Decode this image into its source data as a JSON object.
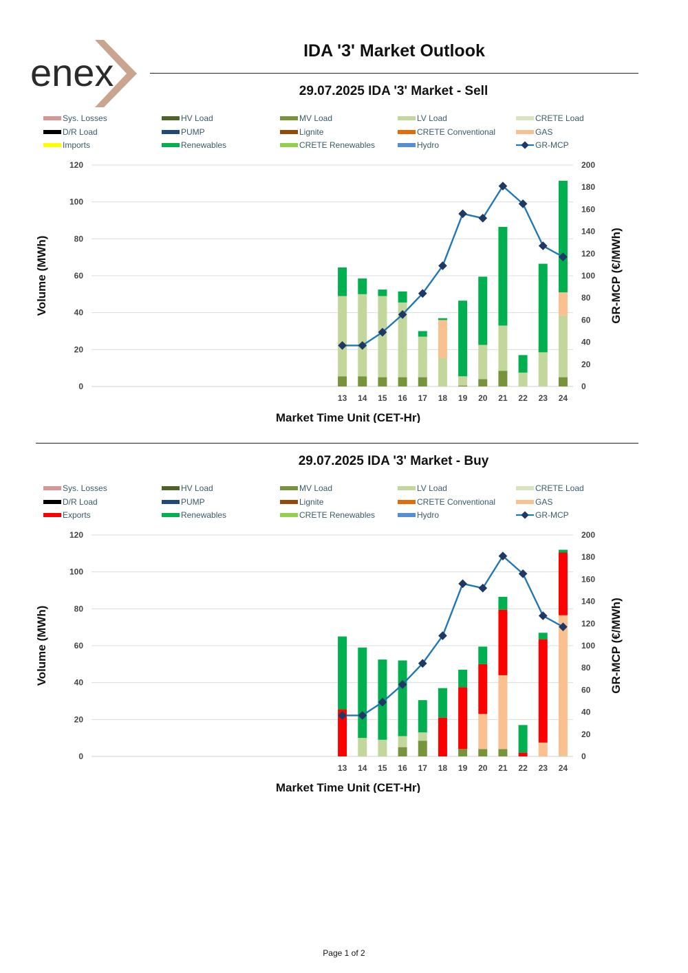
{
  "brand": {
    "logo_text": "enex"
  },
  "header": {
    "title": "IDA '3' Market Outlook"
  },
  "footer": {
    "page_label": "Page 1 of 2"
  },
  "colors": {
    "sys_losses": "#d99594",
    "hv_load": "#4f6228",
    "mv_load": "#77933c",
    "lv_load": "#c3d69b",
    "crete_load": "#d7e4bd",
    "dr_load": "#000000",
    "pump": "#1f497d",
    "lignite": "#974806",
    "crete_conventional": "#e36c09",
    "gas": "#fac090",
    "imports": "#ffff00",
    "exports": "#ff0000",
    "renewables": "#00b050",
    "crete_renewables": "#92d050",
    "hydro": "#558ed5",
    "mcp_line": "#1f77b4",
    "mcp_marker": "#1f3864"
  },
  "chart_data": [
    {
      "type": "bar",
      "title": "29.07.2025  IDA '3' Market - Sell",
      "xlabel": "Market Time Unit (CET-Hr)",
      "ylabel": "Volume (MWh)",
      "y2label": "GR-MCP (€/MWh)",
      "ylim": [
        0,
        120
      ],
      "y2lim": [
        0,
        200
      ],
      "yticks": [
        "0",
        "20",
        "40",
        "60",
        "80",
        "100",
        "120"
      ],
      "y2ticks": [
        "0",
        "20",
        "40",
        "60",
        "80",
        "100",
        "120",
        "140",
        "160",
        "180",
        "200"
      ],
      "slots": 24,
      "categories": [
        "13",
        "14",
        "15",
        "16",
        "17",
        "18",
        "19",
        "20",
        "21",
        "22",
        "23",
        "24"
      ],
      "legend": [
        {
          "key": "sys_losses",
          "label": "Sys. Losses",
          "kind": "bar"
        },
        {
          "key": "hv_load",
          "label": "HV Load",
          "kind": "bar"
        },
        {
          "key": "mv_load",
          "label": "MV Load",
          "kind": "bar"
        },
        {
          "key": "lv_load",
          "label": "LV Load",
          "kind": "bar"
        },
        {
          "key": "crete_load",
          "label": "CRETE Load",
          "kind": "bar"
        },
        {
          "key": "dr_load",
          "label": "D/R Load",
          "kind": "bar"
        },
        {
          "key": "pump",
          "label": "PUMP",
          "kind": "bar"
        },
        {
          "key": "lignite",
          "label": "Lignite",
          "kind": "bar"
        },
        {
          "key": "crete_conventional",
          "label": "CRETE Conventional",
          "kind": "bar"
        },
        {
          "key": "gas",
          "label": "GAS",
          "kind": "bar"
        },
        {
          "key": "imports",
          "label": "Imports",
          "kind": "bar"
        },
        {
          "key": "renewables",
          "label": "Renewables",
          "kind": "bar"
        },
        {
          "key": "crete_renewables",
          "label": "CRETE Renewables",
          "kind": "bar"
        },
        {
          "key": "hydro",
          "label": "Hydro",
          "kind": "bar"
        },
        {
          "key": "gr_mcp",
          "label": "GR-MCP",
          "kind": "line"
        }
      ],
      "series": [
        {
          "name": "MV Load",
          "key": "mv_load",
          "values": [
            5.5,
            5.5,
            5,
            5,
            5,
            0,
            0.5,
            4,
            8.5,
            0,
            0,
            5
          ]
        },
        {
          "name": "LV Load",
          "key": "lv_load",
          "values": [
            43.5,
            44.5,
            44,
            40.5,
            22,
            15.5,
            5,
            18.5,
            24.5,
            7.5,
            18.5,
            33.5
          ]
        },
        {
          "name": "GAS",
          "key": "gas",
          "values": [
            0,
            0,
            0,
            0,
            0,
            20.5,
            0,
            0,
            0,
            0,
            0,
            12.5
          ]
        },
        {
          "name": "Renewables",
          "key": "renewables",
          "values": [
            15.5,
            8.5,
            3.5,
            6,
            3,
            1,
            41,
            37,
            53.5,
            9.5,
            48,
            60.5
          ]
        }
      ],
      "line": {
        "name": "GR-MCP",
        "axis": "right",
        "values": [
          37,
          37,
          49,
          65,
          84,
          109,
          156,
          152,
          181,
          165,
          127,
          117
        ]
      }
    },
    {
      "type": "bar",
      "title": "29.07.2025  IDA '3' Market - Buy",
      "xlabel": "Market Time Unit (CET-Hr)",
      "ylabel": "Volume (MWh)",
      "y2label": "GR-MCP (€/MWh)",
      "ylim": [
        0,
        120
      ],
      "y2lim": [
        0,
        200
      ],
      "yticks": [
        "0",
        "20",
        "40",
        "60",
        "80",
        "100",
        "120"
      ],
      "y2ticks": [
        "0",
        "20",
        "40",
        "60",
        "80",
        "100",
        "120",
        "140",
        "160",
        "180",
        "200"
      ],
      "slots": 24,
      "categories": [
        "13",
        "14",
        "15",
        "16",
        "17",
        "18",
        "19",
        "20",
        "21",
        "22",
        "23",
        "24"
      ],
      "legend": [
        {
          "key": "sys_losses",
          "label": "Sys. Losses",
          "kind": "bar"
        },
        {
          "key": "hv_load",
          "label": "HV Load",
          "kind": "bar"
        },
        {
          "key": "mv_load",
          "label": "MV Load",
          "kind": "bar"
        },
        {
          "key": "lv_load",
          "label": "LV Load",
          "kind": "bar"
        },
        {
          "key": "crete_load",
          "label": "CRETE Load",
          "kind": "bar"
        },
        {
          "key": "dr_load",
          "label": "D/R Load",
          "kind": "bar"
        },
        {
          "key": "pump",
          "label": "PUMP",
          "kind": "bar"
        },
        {
          "key": "lignite",
          "label": "Lignite",
          "kind": "bar"
        },
        {
          "key": "crete_conventional",
          "label": "CRETE Conventional",
          "kind": "bar"
        },
        {
          "key": "gas",
          "label": "GAS",
          "kind": "bar"
        },
        {
          "key": "exports",
          "label": "Exports",
          "kind": "bar"
        },
        {
          "key": "renewables",
          "label": "Renewables",
          "kind": "bar"
        },
        {
          "key": "crete_renewables",
          "label": "CRETE Renewables",
          "kind": "bar"
        },
        {
          "key": "hydro",
          "label": "Hydro",
          "kind": "bar"
        },
        {
          "key": "gr_mcp",
          "label": "GR-MCP",
          "kind": "line"
        }
      ],
      "series": [
        {
          "name": "MV Load",
          "key": "mv_load",
          "values": [
            0,
            0,
            0,
            5,
            8.5,
            0,
            4,
            4,
            4,
            0,
            0,
            0
          ]
        },
        {
          "name": "LV Load",
          "key": "lv_load",
          "values": [
            0,
            10,
            9,
            6,
            4.5,
            0,
            0,
            0,
            0,
            0,
            0,
            0.5
          ]
        },
        {
          "name": "GAS",
          "key": "gas",
          "values": [
            0,
            0,
            0,
            0,
            0,
            0,
            0,
            19,
            40,
            0,
            7.5,
            76
          ]
        },
        {
          "name": "Exports",
          "key": "exports",
          "values": [
            25.5,
            0,
            0,
            0,
            0,
            21,
            33.5,
            27,
            35.5,
            2,
            56,
            34
          ]
        },
        {
          "name": "Renewables",
          "key": "renewables",
          "values": [
            39.5,
            49,
            43.5,
            41,
            17.5,
            16,
            9.5,
            9.5,
            7,
            15,
            3.5,
            1.5
          ]
        }
      ],
      "line": {
        "name": "GR-MCP",
        "axis": "right",
        "values": [
          37,
          37,
          49,
          65,
          84,
          109,
          156,
          152,
          181,
          165,
          127,
          117
        ]
      }
    }
  ]
}
